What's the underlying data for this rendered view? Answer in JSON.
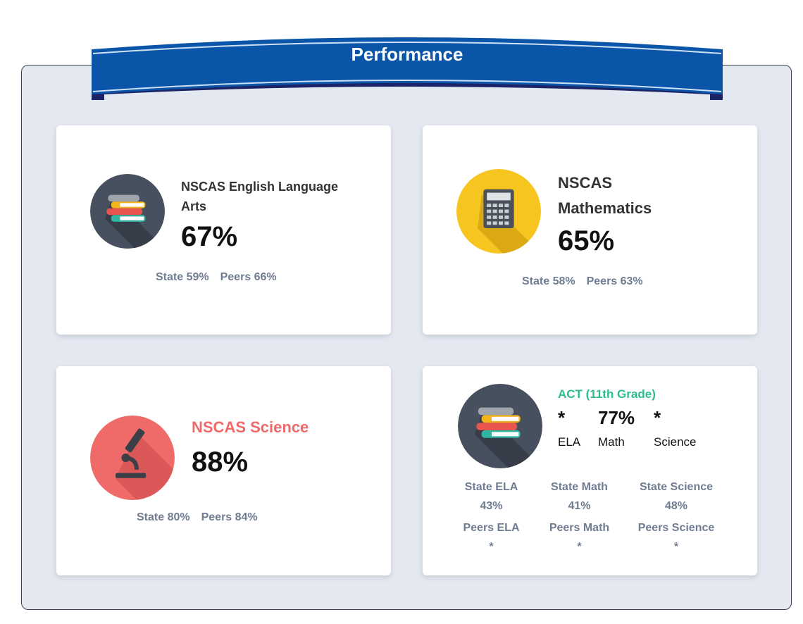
{
  "header": {
    "title": "Performance"
  },
  "colors": {
    "banner": "#0a55a8",
    "panel": "#e3e8f1",
    "science": "#ee6a6a",
    "act": "#2dbd8b",
    "muted": "#6f7c92"
  },
  "cards": [
    {
      "title_line1": "NSCAS English Language",
      "title_line2": "Arts",
      "score": "67%",
      "state": "State 59%",
      "peers": "Peers 66%",
      "icon": "books-icon"
    },
    {
      "title_line1": "NSCAS",
      "title_line2": "Mathematics",
      "score": "65%",
      "state": "State 58%",
      "peers": "Peers 63%",
      "icon": "calculator-icon"
    },
    {
      "title": "NSCAS Science",
      "score": "88%",
      "state": "State 80%",
      "peers": "Peers 84%",
      "icon": "microscope-icon"
    },
    {
      "title": "ACT (11th Grade)",
      "icon": "books-icon",
      "scores": [
        {
          "value": "*",
          "label": "ELA"
        },
        {
          "value": "77%",
          "label": "Math"
        },
        {
          "value": "*",
          "label": "Science"
        }
      ],
      "state": [
        {
          "label": "State ELA",
          "value": "43%"
        },
        {
          "label": "State Math",
          "value": "41%"
        },
        {
          "label": "State Science",
          "value": "48%"
        }
      ],
      "peers": [
        {
          "label": "Peers ELA",
          "value": "*"
        },
        {
          "label": "Peers Math",
          "value": "*"
        },
        {
          "label": "Peers Science",
          "value": "*"
        }
      ]
    }
  ]
}
